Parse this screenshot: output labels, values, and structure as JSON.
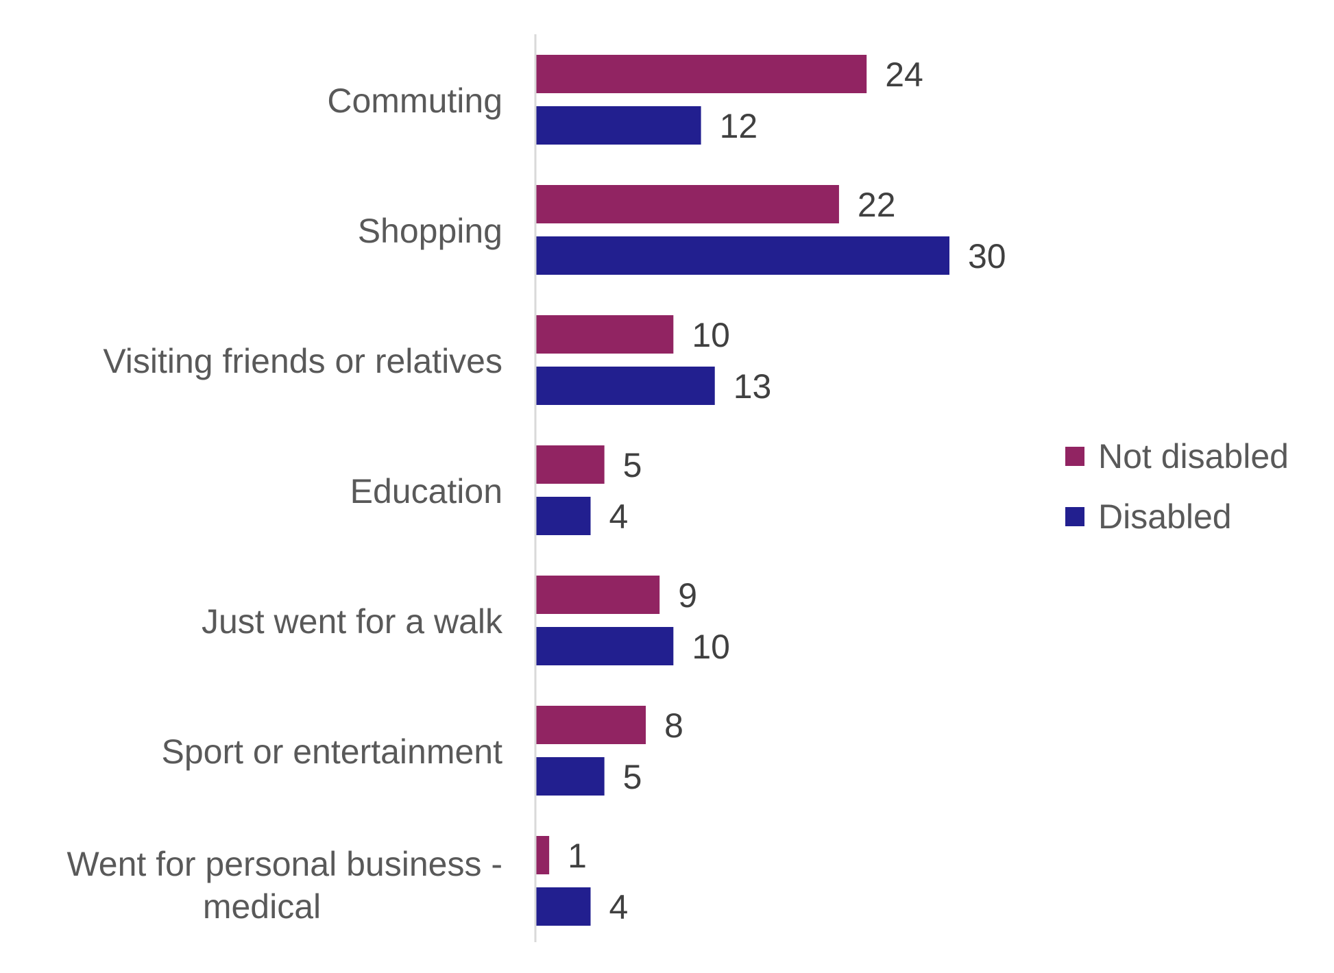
{
  "chart_data": {
    "type": "bar",
    "orientation": "horizontal",
    "categories": [
      "Commuting",
      "Shopping",
      "Visiting friends or relatives",
      "Education",
      "Just went for a walk",
      "Sport or entertainment",
      "Went for personal business - medical"
    ],
    "series": [
      {
        "name": "Not disabled",
        "color": "#912462",
        "values": [
          24,
          22,
          10,
          5,
          9,
          8,
          1
        ]
      },
      {
        "name": "Disabled",
        "color": "#221F8F",
        "values": [
          12,
          30,
          13,
          4,
          10,
          5,
          4
        ]
      }
    ],
    "title": "",
    "xlabel": "",
    "ylabel": "",
    "xlim": [
      0,
      30
    ],
    "grid": false,
    "data_labels": true,
    "legend_position": "right"
  }
}
